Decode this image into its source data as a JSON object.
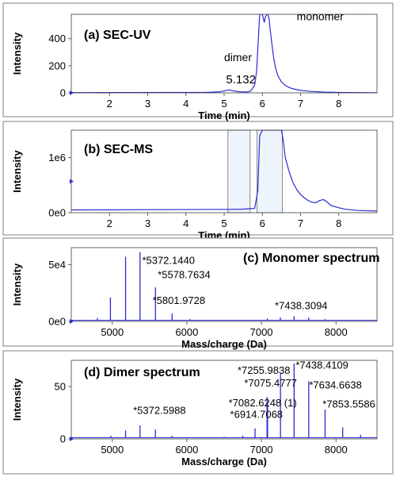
{
  "chart_data": [
    {
      "id": "a",
      "type": "line",
      "title": "(a) SEC-UV",
      "xlabel": "Time (min)",
      "ylabel": "Intensity",
      "xlim": [
        1,
        9
      ],
      "ylim": [
        0,
        580
      ],
      "xticks": [
        2,
        3,
        4,
        5,
        6,
        7,
        8
      ],
      "yticks": [
        0,
        200,
        400
      ],
      "ytick_labels": [
        "0",
        "200",
        "400"
      ],
      "series": [
        {
          "x": [
            1.0,
            4.5,
            4.9,
            5.0,
            5.132,
            5.25,
            5.4,
            5.6,
            5.7,
            5.8,
            5.85,
            5.9,
            5.93,
            6.0,
            6.05,
            6.08,
            6.12,
            6.15,
            6.18,
            6.2,
            6.25,
            6.3,
            6.35,
            6.4,
            6.5,
            6.6,
            6.7,
            6.8,
            7.0,
            7.3,
            7.6,
            8.0,
            9.0
          ],
          "y": [
            2,
            3,
            8,
            14,
            22,
            14,
            8,
            6,
            14,
            60,
            160,
            420,
            580,
            580,
            520,
            560,
            580,
            580,
            540,
            480,
            360,
            250,
            180,
            130,
            80,
            55,
            40,
            30,
            18,
            10,
            6,
            3,
            1
          ]
        }
      ],
      "annotations": [
        {
          "text": "monomer",
          "x": 6.9,
          "y": 535,
          "size": 14
        },
        {
          "text": "dimer",
          "x": 5.0,
          "y": 235,
          "size": 14
        },
        {
          "text": "5.132",
          "x": 5.05,
          "y": 70,
          "size": 15
        }
      ]
    },
    {
      "id": "b",
      "type": "line",
      "title": "(b) SEC-MS",
      "xlabel": "Time (min)",
      "ylabel": "Intensity",
      "xlim": [
        1,
        9
      ],
      "ylim": [
        0,
        1500000
      ],
      "xticks": [
        2,
        3,
        4,
        5,
        6,
        7,
        8
      ],
      "yticks": [
        0,
        1000000
      ],
      "ytick_labels": [
        "0e0",
        "1e6"
      ],
      "shaded_ranges": [
        [
          5.1,
          5.68
        ],
        [
          5.86,
          6.52
        ]
      ],
      "series": [
        {
          "x": [
            1.0,
            5.1,
            5.5,
            5.8,
            5.88,
            5.93,
            6.0,
            6.4,
            6.5,
            6.55,
            6.6,
            6.7,
            6.8,
            6.9,
            7.0,
            7.1,
            7.2,
            7.3,
            7.4,
            7.5,
            7.6,
            7.7,
            7.8,
            7.9,
            8.0,
            8.2,
            8.5,
            9.0
          ],
          "y": [
            50000,
            60000,
            65000,
            80000,
            400000,
            1400000,
            1500000,
            1500000,
            1500000,
            1300000,
            1000000,
            750000,
            550000,
            420000,
            330000,
            270000,
            220000,
            190000,
            180000,
            220000,
            240000,
            190000,
            130000,
            110000,
            90000,
            60000,
            40000,
            30000
          ]
        }
      ]
    },
    {
      "id": "c",
      "type": "bar",
      "title": "(c) Monomer spectrum",
      "xlabel": "Mass/charge (Da)",
      "ylabel": "Intensity",
      "xlim": [
        4450,
        8550
      ],
      "ylim": [
        0,
        65000
      ],
      "xticks": [
        5000,
        6000,
        7000,
        8000
      ],
      "yticks": [
        0,
        50000
      ],
      "ytick_labels": [
        "0e0",
        "5e4"
      ],
      "peaks": [
        {
          "x": 4800,
          "y": 3000
        },
        {
          "x": 4975,
          "y": 21000
        },
        {
          "x": 5178,
          "y": 57000
        },
        {
          "x": 5372.144,
          "y": 61000
        },
        {
          "x": 5578.7634,
          "y": 30000
        },
        {
          "x": 5801.9728,
          "y": 7000
        },
        {
          "x": 6043,
          "y": 2000
        },
        {
          "x": 7080,
          "y": 2500
        },
        {
          "x": 7254,
          "y": 3500
        },
        {
          "x": 7438.3094,
          "y": 4500
        },
        {
          "x": 7634,
          "y": 3500
        },
        {
          "x": 7853,
          "y": 2000
        }
      ],
      "annotations": [
        {
          "text": "*5372.1440",
          "x": 5400,
          "y": 50500,
          "size": 13
        },
        {
          "text": "*5578.7634",
          "x": 5610,
          "y": 38000,
          "size": 13
        },
        {
          "text": "*5801.9728",
          "x": 5540,
          "y": 15500,
          "size": 13
        },
        {
          "text": "*7438.3094",
          "x": 7180,
          "y": 10800,
          "size": 13
        }
      ]
    },
    {
      "id": "d",
      "type": "bar",
      "title": "(d) Dimer spectrum",
      "xlabel": "Mass/charge (Da)",
      "ylabel": "Intensity",
      "xlim": [
        4450,
        8550
      ],
      "ylim": [
        0,
        75
      ],
      "xticks": [
        5000,
        6000,
        7000,
        8000
      ],
      "yticks": [
        0,
        50
      ],
      "ytick_labels": [
        "0",
        "50"
      ],
      "peaks": [
        {
          "x": 4980,
          "y": 3
        },
        {
          "x": 5178,
          "y": 8
        },
        {
          "x": 5372.5988,
          "y": 13
        },
        {
          "x": 5578,
          "y": 9
        },
        {
          "x": 5802,
          "y": 3
        },
        {
          "x": 6500,
          "y": 2
        },
        {
          "x": 6750,
          "y": 3
        },
        {
          "x": 6914.7068,
          "y": 10
        },
        {
          "x": 7075.4777,
          "y": 40
        },
        {
          "x": 7082.6248,
          "y": 34
        },
        {
          "x": 7255.9838,
          "y": 62
        },
        {
          "x": 7438.4109,
          "y": 72
        },
        {
          "x": 7634.6638,
          "y": 55
        },
        {
          "x": 7853.5586,
          "y": 28
        },
        {
          "x": 8090,
          "y": 11
        },
        {
          "x": 8330,
          "y": 4
        }
      ],
      "annotations": [
        {
          "text": "*7255.9838",
          "x": 6680,
          "y": 62,
          "size": 13
        },
        {
          "text": "*7438.4109",
          "x": 7460,
          "y": 67,
          "size": 13
        },
        {
          "text": "*7075.4777",
          "x": 6770,
          "y": 50,
          "size": 13
        },
        {
          "text": "*7634.6638",
          "x": 7640,
          "y": 48,
          "size": 13
        },
        {
          "text": "*7082.6248 (1)",
          "x": 6560,
          "y": 31,
          "size": 13
        },
        {
          "text": "*6914.7068",
          "x": 6580,
          "y": 20,
          "size": 13
        },
        {
          "text": "*5372.5988",
          "x": 5280,
          "y": 24,
          "size": 13
        },
        {
          "text": "*7853.5586",
          "x": 7820,
          "y": 30,
          "size": 13
        }
      ]
    }
  ]
}
